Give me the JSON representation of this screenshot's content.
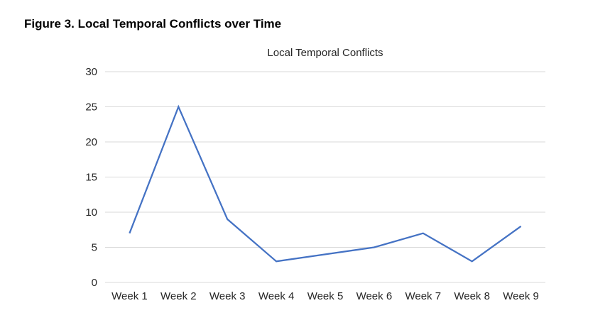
{
  "figure": {
    "caption": "Figure 3.  Local Temporal Conflicts over Time"
  },
  "chart_data": {
    "type": "line",
    "title": "Local Temporal Conflicts",
    "xlabel": "",
    "ylabel": "",
    "categories": [
      "Week 1",
      "Week 2",
      "Week 3",
      "Week 4",
      "Week 5",
      "Week 6",
      "Week 7",
      "Week 8",
      "Week 9"
    ],
    "series": [
      {
        "values": [
          7,
          25,
          9,
          3,
          4,
          5,
          7,
          3,
          8
        ]
      }
    ],
    "ylim": [
      0,
      30
    ],
    "yticks": [
      0,
      5,
      10,
      15,
      20,
      25,
      30
    ],
    "grid": true,
    "legend": "none",
    "colors": {
      "line": "#4472C4",
      "grid": "#d9d9d9",
      "text": "#262626"
    }
  }
}
